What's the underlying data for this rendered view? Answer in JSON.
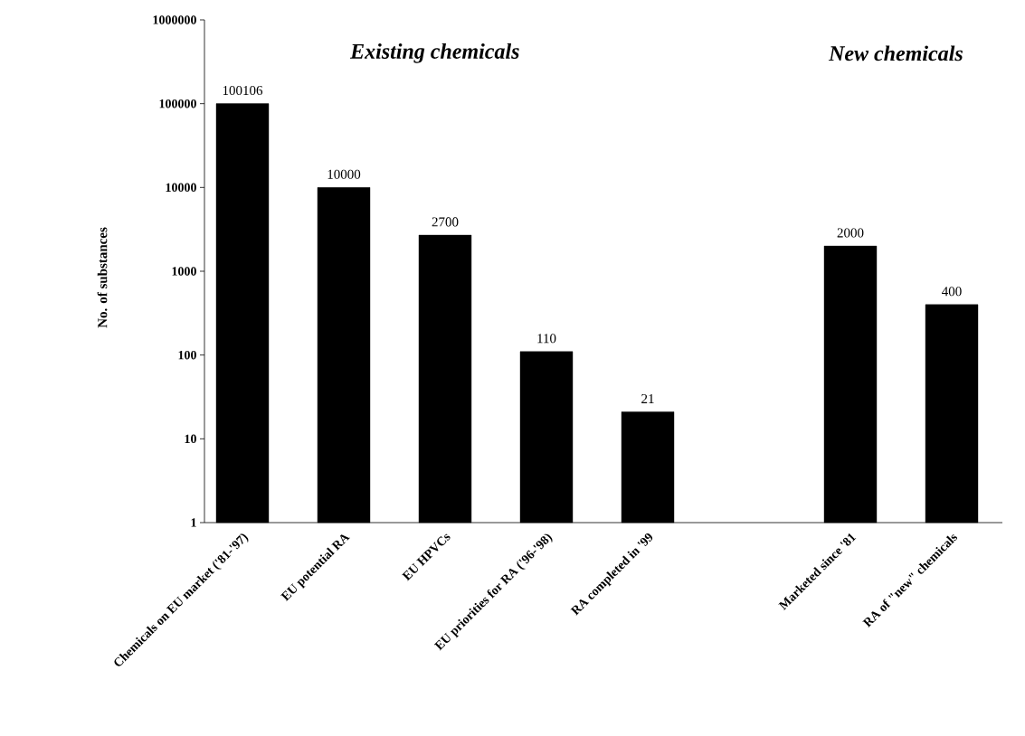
{
  "chart_data": {
    "type": "bar",
    "ylabel": "No. of substances",
    "categories": [
      "Chemicals on EU market ('81-'97)",
      "EU potential RA",
      "EU  HPVCs",
      "EU priorities for RA ('96-'98)",
      "RA completed in '99",
      null,
      "Marketed since '81",
      "RA of \"new\" chemicals"
    ],
    "values": [
      100106,
      10000,
      2700,
      110,
      21,
      null,
      2000,
      400
    ],
    "color": "#000000",
    "log": true,
    "ylim": [
      1,
      1000000
    ],
    "yticks": [
      1,
      10,
      100,
      1000,
      10000,
      100000,
      1000000
    ],
    "data_labels": true,
    "grid": false,
    "annotations": [
      "Existing chemicals",
      "New chemicals"
    ]
  }
}
